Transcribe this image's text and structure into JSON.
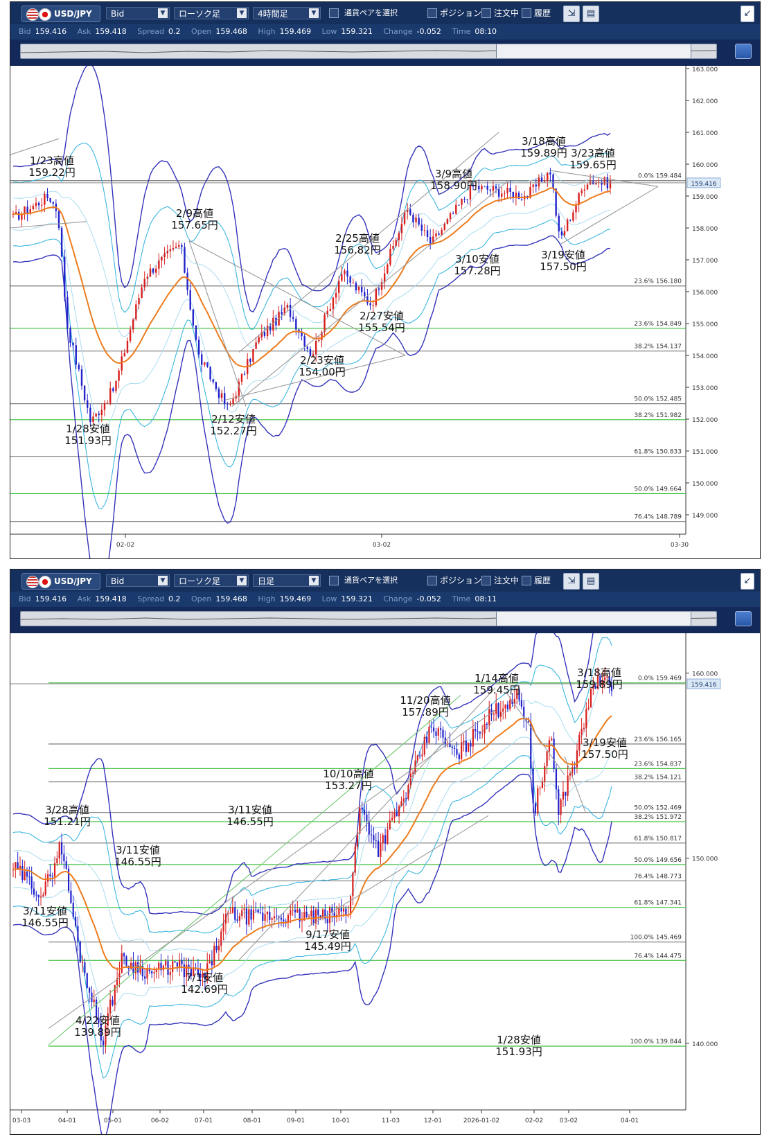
{
  "window1": {
    "pair": "USD/JPY",
    "price_type": "Bid",
    "chart_type": "ローソク足",
    "timeframe": "4時間足",
    "select_pair_label": "通貨ペアを選択",
    "position_label": "ポジション",
    "orders_label": "注文中",
    "history_label": "履歴",
    "info": {
      "bid_label": "Bid",
      "bid": "159.416",
      "ask_label": "Ask",
      "ask": "159.418",
      "spread_label": "Spread",
      "spread": "0.2",
      "open_label": "Open",
      "open": "159.468",
      "high_label": "High",
      "high": "159.469",
      "low_label": "Low",
      "low": "159.321",
      "change_label": "Change",
      "change": "-0.052",
      "time_label": "Time",
      "time": "08:10"
    },
    "current_price": "159.416",
    "y_axis_labels": [
      "163.000",
      "162.000",
      "161.000",
      "160.000",
      "159.000",
      "158.000",
      "157.000",
      "156.000",
      "155.000",
      "154.000",
      "153.000",
      "152.000",
      "151.000",
      "150.000",
      "149.000"
    ],
    "x_axis_labels": [
      "02-02",
      "03-02",
      "03-30"
    ],
    "fib_levels": [
      "0.0% 159.484",
      "23.6% 156.180",
      "23.6% 154.849",
      "38.2% 154.137",
      "50.0% 152.485",
      "38.2% 151.982",
      "61.8% 150.833",
      "50.0% 149.664",
      "76.4% 148.789"
    ],
    "annotations": [
      {
        "l1": "1/23高値",
        "l2": "159.22円"
      },
      {
        "l1": "1/28安値",
        "l2": "151.93円"
      },
      {
        "l1": "2/9高値",
        "l2": "157.65円"
      },
      {
        "l1": "2/12安値",
        "l2": "152.27円"
      },
      {
        "l1": "2/23安値",
        "l2": "154.00円"
      },
      {
        "l1": "2/25高値",
        "l2": "156.82円"
      },
      {
        "l1": "2/27安値",
        "l2": "155.54円"
      },
      {
        "l1": "3/9高値",
        "l2": "158.90円"
      },
      {
        "l1": "3/10安値",
        "l2": "157.28円"
      },
      {
        "l1": "3/18高値",
        "l2": "159.89円"
      },
      {
        "l1": "3/23高値",
        "l2": "159.65円"
      },
      {
        "l1": "3/19安値",
        "l2": "157.50円"
      }
    ],
    "colors": {
      "up": "#d81e1e",
      "down": "#2222cc",
      "ma": "#ee7b1c",
      "bb_outer": "#3333bb",
      "bb_mid": "#3cb6e0",
      "bb_inner": "#a9dcf0",
      "fib_green": "#3fbf3f",
      "fib_gray": "#777777",
      "trend": "#999999"
    }
  },
  "window2": {
    "pair": "USD/JPY",
    "price_type": "Bid",
    "chart_type": "ローソク足",
    "timeframe": "日足",
    "select_pair_label": "通貨ペアを選択",
    "position_label": "ポジション",
    "orders_label": "注文中",
    "history_label": "履歴",
    "info": {
      "bid_label": "Bid",
      "bid": "159.416",
      "ask_label": "Ask",
      "ask": "159.418",
      "spread_label": "Spread",
      "spread": "0.2",
      "open_label": "Open",
      "open": "159.468",
      "high_label": "High",
      "high": "159.469",
      "low_label": "Low",
      "low": "159.321",
      "change_label": "Change",
      "change": "-0.052",
      "time_label": "Time",
      "time": "08:11"
    },
    "current_price": "159.416",
    "y_axis_labels": [
      "160.000",
      "150.000",
      "140.000"
    ],
    "x_axis_labels": [
      "03-03",
      "04-01",
      "05-01",
      "06-02",
      "07-01",
      "08-01",
      "09-01",
      "10-01",
      "11-03",
      "12-01",
      "2026-01-02",
      "02-02",
      "03-02",
      "04-01"
    ],
    "fib_levels": [
      "0.0% 159.469",
      "23.6% 156.165",
      "23.6% 154.837",
      "38.2% 154.121",
      "50.0% 152.469",
      "38.2% 151.972",
      "61.8% 150.817",
      "50.0% 149.656",
      "76.4% 148.773",
      "61.8% 147.341",
      "100.0% 145.469",
      "76.4% 144.475",
      "100.0% 139.844"
    ],
    "annotations": [
      {
        "l1": "3/28高値",
        "l2": "151.21円"
      },
      {
        "l1": "3/11安値",
        "l2": "146.55円"
      },
      {
        "l1": "3/11安値",
        "l2": "146.55円"
      },
      {
        "l1": "3/11安値",
        "l2": "146.55円"
      },
      {
        "l1": "4/22安値",
        "l2": "139.89円"
      },
      {
        "l1": "7/1安値",
        "l2": "142.69円"
      },
      {
        "l1": "9/17安値",
        "l2": "145.49円"
      },
      {
        "l1": "10/10高値",
        "l2": "153.27円"
      },
      {
        "l1": "11/20高値",
        "l2": "157.89円"
      },
      {
        "l1": "1/14高値",
        "l2": "159.45円"
      },
      {
        "l1": "1/28安値",
        "l2": "151.93円"
      },
      {
        "l1": "3/18高値",
        "l2": "159.89円"
      },
      {
        "l1": "3/19安値",
        "l2": "157.50円"
      }
    ]
  },
  "chart_data": [
    {
      "type": "candlestick",
      "pair": "USD/JPY",
      "timeframe": "4時間足",
      "x": [
        "1/23",
        "1/28",
        "2/9",
        "2/12",
        "2/23",
        "2/25",
        "2/27",
        "3/9",
        "3/10",
        "3/18",
        "3/19",
        "3/23"
      ],
      "swing_points": [
        159.22,
        151.93,
        157.65,
        152.27,
        154.0,
        156.82,
        155.54,
        158.9,
        157.28,
        159.89,
        157.5,
        159.65
      ],
      "y_range": [
        148.7,
        163.1
      ],
      "x_ticks": [
        "02-02",
        "03-02",
        "03-30"
      ]
    },
    {
      "type": "candlestick",
      "pair": "USD/JPY",
      "timeframe": "日足",
      "x": [
        "3/28",
        "4/22",
        "7/1",
        "9/17",
        "10/10",
        "11/20",
        "1/14",
        "1/28",
        "3/18",
        "3/19"
      ],
      "swing_points": [
        151.21,
        139.89,
        142.69,
        145.49,
        153.27,
        157.89,
        159.45,
        151.93,
        159.89,
        157.5
      ],
      "y_range": [
        137.0,
        162.0
      ],
      "x_ticks": [
        "03-03",
        "04-01",
        "05-01",
        "06-02",
        "07-01",
        "08-01",
        "09-01",
        "10-01",
        "11-03",
        "12-01",
        "2026-01-02",
        "02-02",
        "03-02",
        "04-01"
      ]
    }
  ]
}
